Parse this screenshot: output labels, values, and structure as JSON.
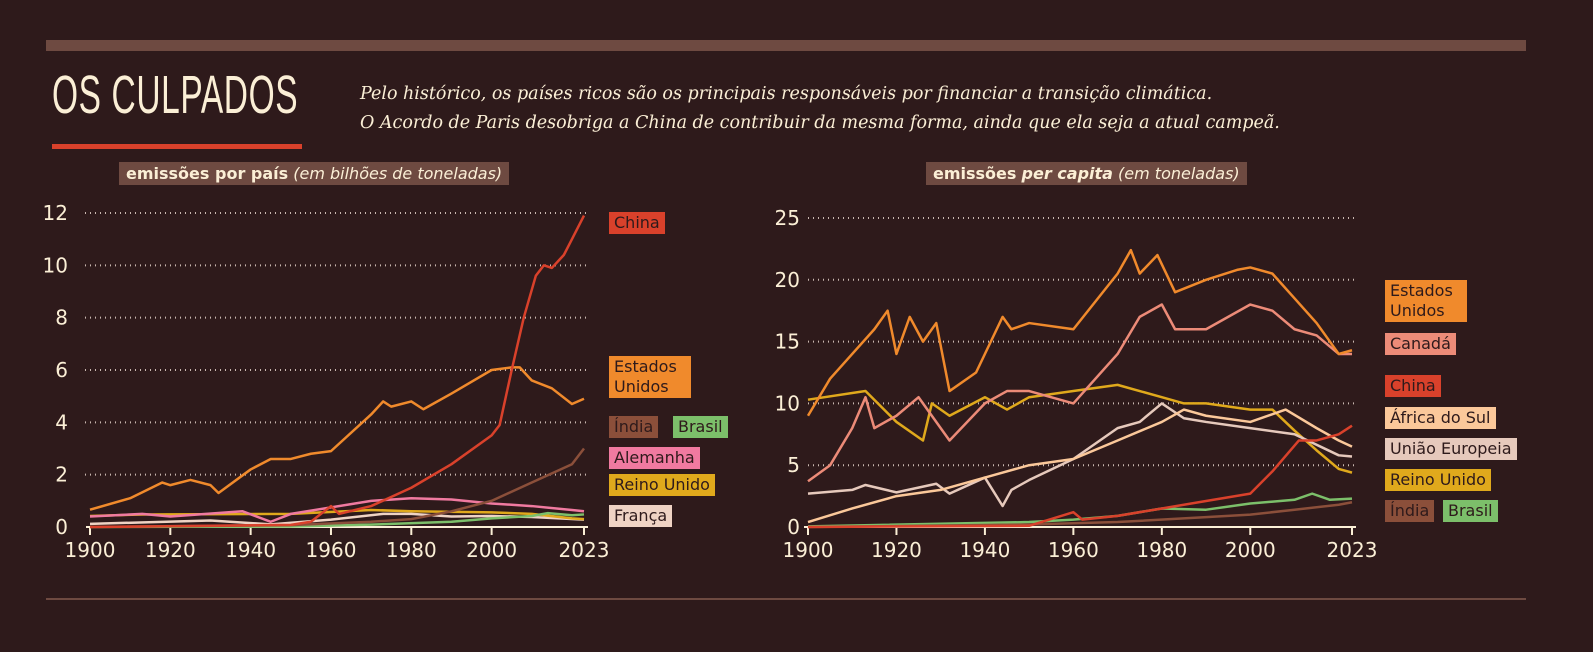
{
  "header": {
    "title": "OS CULPADOS",
    "subtitle_line1": "Pelo histórico, os países ricos são os principais responsáveis por financiar a transição climática.",
    "subtitle_line2": "O Acordo de Paris desobriga a China de contribuir da mesma forma, ainda que ela seja a atual campeã."
  },
  "chart_data": [
    {
      "type": "line",
      "title_bold": "emissões por país",
      "title_italic": "(em bilhões de toneladas)",
      "xlim": [
        1900,
        2023
      ],
      "ylim": [
        0,
        12
      ],
      "xticks": [
        "1900",
        "1920",
        "1940",
        "1960",
        "1980",
        "2000",
        "2023"
      ],
      "yticks": [
        "0",
        "2",
        "4",
        "6",
        "8",
        "10",
        "12"
      ],
      "grid": "horizontal dotted",
      "series": [
        {
          "name": "China",
          "color": "#d9412b",
          "x": [
            1900,
            1950,
            1955,
            1960,
            1962,
            1970,
            1980,
            1990,
            2000,
            2002,
            2005,
            2008,
            2011,
            2013,
            2015,
            2018,
            2020,
            2023
          ],
          "y": [
            0,
            0.08,
            0.2,
            0.8,
            0.5,
            0.8,
            1.5,
            2.4,
            3.5,
            3.9,
            6,
            8,
            9.6,
            10,
            9.9,
            10.4,
            11,
            11.9
          ]
        },
        {
          "name": "Estados Unidos",
          "color": "#f08a2c",
          "x": [
            1900,
            1910,
            1918,
            1920,
            1925,
            1930,
            1932,
            1940,
            1945,
            1950,
            1955,
            1960,
            1970,
            1973,
            1975,
            1980,
            1983,
            1990,
            2000,
            2005,
            2007,
            2010,
            2015,
            2020,
            2023
          ],
          "y": [
            0.66,
            1.1,
            1.7,
            1.6,
            1.8,
            1.6,
            1.3,
            2.2,
            2.6,
            2.6,
            2.8,
            2.9,
            4.3,
            4.8,
            4.6,
            4.8,
            4.5,
            5.1,
            6.0,
            6.1,
            6.1,
            5.6,
            5.3,
            4.7,
            4.9
          ]
        },
        {
          "name": "Índia",
          "color": "#8b4f3a",
          "x": [
            1900,
            1950,
            1970,
            1980,
            1990,
            2000,
            2010,
            2020,
            2023
          ],
          "y": [
            0,
            0.07,
            0.2,
            0.3,
            0.6,
            1.0,
            1.7,
            2.4,
            3.0
          ]
        },
        {
          "name": "Brasil",
          "color": "#7cbf6a",
          "x": [
            1900,
            1950,
            1970,
            1990,
            2000,
            2010,
            2014,
            2020,
            2023
          ],
          "y": [
            0,
            0.02,
            0.09,
            0.2,
            0.33,
            0.42,
            0.53,
            0.45,
            0.48
          ]
        },
        {
          "name": "Alemanha",
          "color": "#f07aa0",
          "x": [
            1900,
            1913,
            1920,
            1938,
            1945,
            1950,
            1970,
            1980,
            1990,
            2000,
            2010,
            2020,
            2023
          ],
          "y": [
            0.4,
            0.5,
            0.4,
            0.6,
            0.2,
            0.5,
            1.0,
            1.1,
            1.05,
            0.9,
            0.8,
            0.65,
            0.6
          ]
        },
        {
          "name": "Reino Unido",
          "color": "#e0a91c",
          "x": [
            1900,
            1913,
            1950,
            1970,
            1980,
            2000,
            2010,
            2020,
            2023
          ],
          "y": [
            0.42,
            0.48,
            0.5,
            0.65,
            0.6,
            0.56,
            0.5,
            0.33,
            0.3
          ]
        },
        {
          "name": "França",
          "color": "#efd3c4",
          "x": [
            1900,
            1930,
            1945,
            1960,
            1973,
            1980,
            1990,
            2000,
            2010,
            2023
          ],
          "y": [
            0.12,
            0.25,
            0.1,
            0.28,
            0.5,
            0.5,
            0.4,
            0.42,
            0.38,
            0.28
          ]
        }
      ]
    },
    {
      "type": "line",
      "title_bold": "emissões",
      "title_bolditalic": "per capita",
      "title_italic": "(em toneladas)",
      "xlim": [
        1900,
        2023
      ],
      "ylim": [
        0,
        25
      ],
      "xticks": [
        "1900",
        "1920",
        "1940",
        "1960",
        "1980",
        "2000",
        "2023"
      ],
      "yticks": [
        "0",
        "5",
        "10",
        "15",
        "20",
        "25"
      ],
      "grid": "horizontal dotted",
      "series": [
        {
          "name": "Estados Unidos",
          "color": "#f08a2c",
          "x": [
            1900,
            1905,
            1910,
            1915,
            1918,
            1920,
            1923,
            1926,
            1929,
            1932,
            1938,
            1944,
            1946,
            1950,
            1960,
            1970,
            1973,
            1975,
            1979,
            1983,
            1990,
            1997,
            2000,
            2005,
            2010,
            2015,
            2020,
            2023
          ],
          "y": [
            9,
            12,
            14,
            16,
            17.5,
            14,
            17,
            15,
            16.5,
            11,
            12.5,
            17,
            16,
            16.5,
            16,
            20.5,
            22.4,
            20.5,
            22,
            19,
            20,
            20.8,
            21,
            20.5,
            18.5,
            16.5,
            14,
            14.3
          ]
        },
        {
          "name": "Canadá",
          "color": "#ec8b78",
          "x": [
            1900,
            1905,
            1910,
            1913,
            1915,
            1920,
            1925,
            1932,
            1940,
            1945,
            1950,
            1960,
            1970,
            1975,
            1980,
            1983,
            1990,
            2000,
            2005,
            2010,
            2015,
            2020,
            2023
          ],
          "y": [
            3.7,
            5,
            8,
            10.5,
            8,
            9,
            10.5,
            7,
            10,
            11,
            11,
            10,
            14,
            17,
            18,
            16,
            16,
            18,
            17.5,
            16,
            15.5,
            14,
            14
          ]
        },
        {
          "name": "China",
          "color": "#d9412b",
          "x": [
            1900,
            1950,
            1960,
            1962,
            1970,
            1980,
            1990,
            2000,
            2005,
            2011,
            2015,
            2020,
            2023
          ],
          "y": [
            0,
            0.1,
            1.2,
            0.6,
            0.9,
            1.5,
            2.1,
            2.7,
            4.5,
            7,
            7,
            7.5,
            8.2
          ]
        },
        {
          "name": "África do Sul",
          "color": "#fbc89a",
          "x": [
            1900,
            1910,
            1920,
            1930,
            1940,
            1950,
            1960,
            1970,
            1980,
            1985,
            1990,
            2000,
            2008,
            2015,
            2020,
            2023
          ],
          "y": [
            0.4,
            1.5,
            2.5,
            3,
            4,
            5,
            5.5,
            7,
            8.5,
            9.5,
            9,
            8.5,
            9.5,
            8,
            7,
            6.5
          ]
        },
        {
          "name": "União Europeia",
          "color": "#e6c9bc",
          "x": [
            1900,
            1910,
            1913,
            1920,
            1929,
            1932,
            1940,
            1944,
            1946,
            1950,
            1960,
            1970,
            1975,
            1980,
            1985,
            1990,
            2000,
            2010,
            2020,
            2023
          ],
          "y": [
            2.7,
            3,
            3.4,
            2.8,
            3.5,
            2.7,
            4,
            1.7,
            3,
            3.8,
            5.5,
            8,
            8.5,
            10,
            8.8,
            8.5,
            8,
            7.5,
            5.8,
            5.7
          ]
        },
        {
          "name": "Reino Unido",
          "color": "#e0a91c",
          "x": [
            1900,
            1913,
            1920,
            1926,
            1928,
            1932,
            1940,
            1945,
            1950,
            1960,
            1970,
            1975,
            1980,
            1985,
            1990,
            2000,
            2005,
            2010,
            2015,
            2020,
            2023
          ],
          "y": [
            10.3,
            11,
            8.5,
            7,
            10,
            9,
            10.5,
            9.5,
            10.5,
            11,
            11.5,
            11,
            10.5,
            10,
            10,
            9.5,
            9.5,
            7.8,
            6.2,
            4.7,
            4.4
          ]
        },
        {
          "name": "Índia",
          "color": "#8b4f3a",
          "x": [
            1900,
            1950,
            1970,
            1990,
            2000,
            2010,
            2020,
            2023
          ],
          "y": [
            0,
            0.2,
            0.4,
            0.8,
            1.0,
            1.4,
            1.8,
            2.0
          ]
        },
        {
          "name": "Brasil",
          "color": "#7cbf6a",
          "x": [
            1900,
            1950,
            1960,
            1970,
            1980,
            1990,
            2000,
            2010,
            2014,
            2018,
            2023
          ],
          "y": [
            0.05,
            0.4,
            0.6,
            0.9,
            1.5,
            1.4,
            1.9,
            2.2,
            2.7,
            2.2,
            2.3
          ]
        }
      ]
    }
  ],
  "labels_left": [
    "China",
    "Estados Unidos",
    "Índia",
    "Brasil",
    "Alemanha",
    "Reino Unido",
    "França"
  ],
  "labels_right": [
    "Estados Unidos",
    "Canadá",
    "China",
    "África do Sul",
    "União Europeia",
    "Reino Unido",
    "Índia",
    "Brasil"
  ]
}
